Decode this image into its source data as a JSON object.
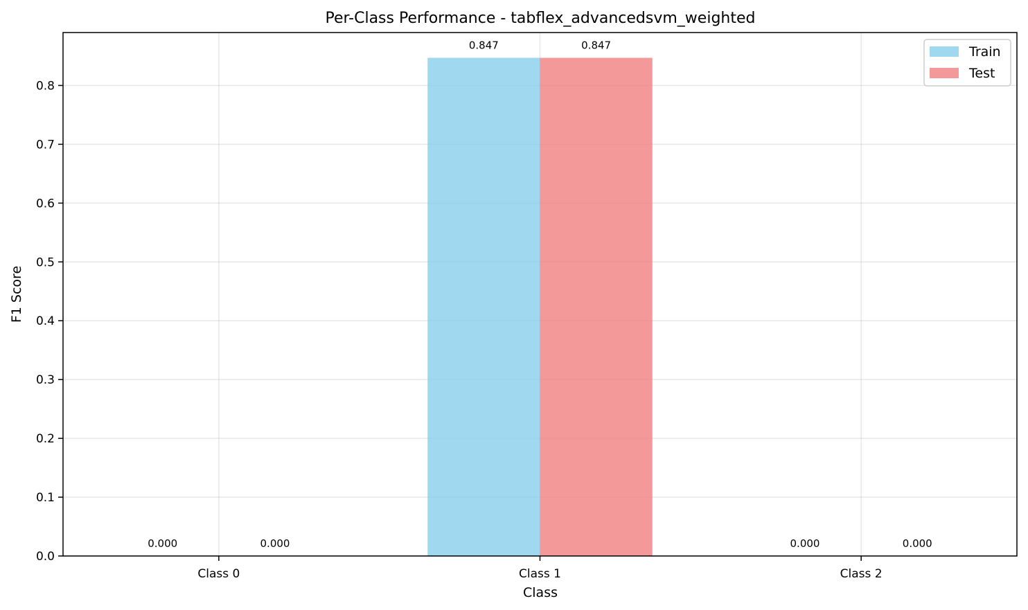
{
  "chart_data": {
    "type": "bar",
    "title": "Per-Class Performance - tabflex_advancedsvm_weighted",
    "xlabel": "Class",
    "ylabel": "F1 Score",
    "categories": [
      "Class 0",
      "Class 1",
      "Class 2"
    ],
    "series": [
      {
        "name": "Train",
        "values": [
          0.0,
          0.847,
          0.0
        ],
        "color": "#87CEEB",
        "labels": [
          "0.000",
          "0.847",
          "0.000"
        ]
      },
      {
        "name": "Test",
        "values": [
          0.0,
          0.847,
          0.0
        ],
        "color": "#F08080",
        "labels": [
          "0.000",
          "0.847",
          "0.000"
        ]
      }
    ],
    "ylim": [
      0,
      0.89
    ],
    "yticks": [
      0.0,
      0.1,
      0.2,
      0.3,
      0.4,
      0.5,
      0.6,
      0.7,
      0.8
    ],
    "ytick_labels": [
      "0.0",
      "0.1",
      "0.2",
      "0.3",
      "0.4",
      "0.5",
      "0.6",
      "0.7",
      "0.8"
    ],
    "grid": true,
    "legend_position": "top-right"
  }
}
